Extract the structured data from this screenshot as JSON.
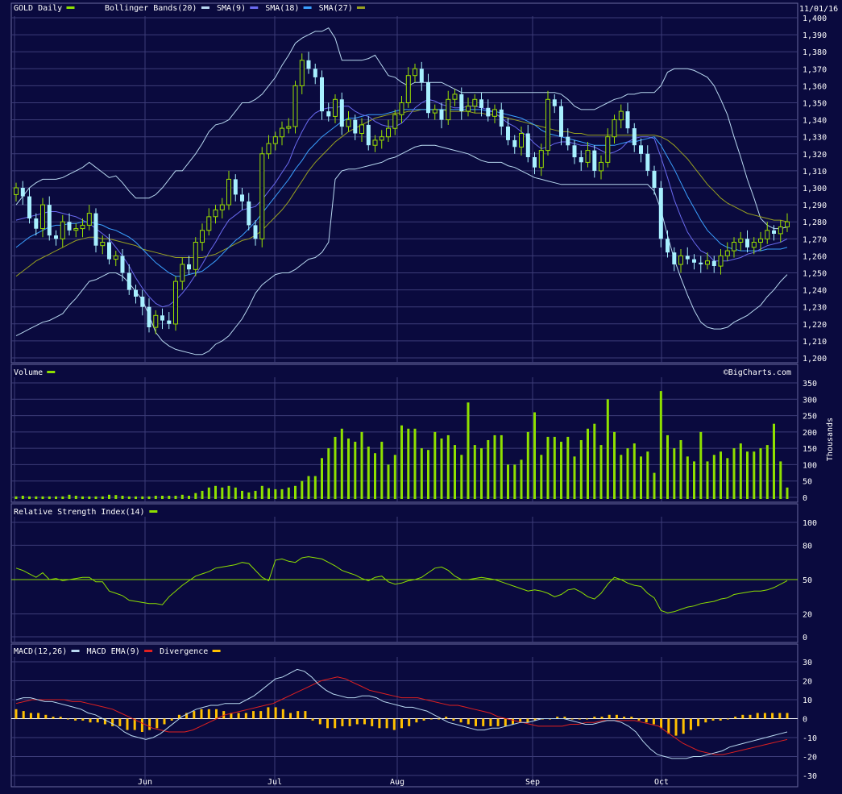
{
  "colors": {
    "background": "#0a0a3e",
    "grid": "#3c3c78",
    "up": "#9be000",
    "down": "#a8f0ff",
    "bollinger": "#b8d8f0",
    "sma9": "#6a6af0",
    "sma18": "#3aa0ff",
    "sma27": "#98a020",
    "volume": "#8ee000",
    "rsi": "#8ee000",
    "macd": "#b8d8f0",
    "macd_ema": "#e02020",
    "divergence": "#ffc000"
  },
  "header": {
    "date": "11/01/16"
  },
  "watermark": "©BigCharts.com",
  "chart_data": [
    {
      "id": "price",
      "type": "candlestick",
      "legend": [
        {
          "label": "GOLD Daily",
          "color": "#8ee000"
        },
        {
          "label": "Bollinger Bands(20)",
          "color": "#b8d8f0"
        },
        {
          "label": "SMA(9)",
          "color": "#6a6af0"
        },
        {
          "label": "SMA(18)",
          "color": "#3aa0ff"
        },
        {
          "label": "SMA(27)",
          "color": "#98a020"
        }
      ],
      "ylim": [
        1200,
        1400
      ],
      "yticks": [
        "1,200",
        "1,210",
        "1,220",
        "1,230",
        "1,240",
        "1,250",
        "1,260",
        "1,270",
        "1,280",
        "1,290",
        "1,300",
        "1,310",
        "1,320",
        "1,330",
        "1,340",
        "1,350",
        "1,360",
        "1,370",
        "1,380",
        "1,390",
        "1,400"
      ],
      "xticks": [
        "Jun",
        "Jul",
        "Aug",
        "Sep",
        "Oct"
      ],
      "close": [
        1300,
        1295,
        1282,
        1276,
        1290,
        1272,
        1270,
        1280,
        1275,
        1276,
        1278,
        1285,
        1266,
        1268,
        1258,
        1260,
        1250,
        1240,
        1236,
        1230,
        1218,
        1225,
        1222,
        1220,
        1245,
        1255,
        1252,
        1268,
        1275,
        1283,
        1287,
        1290,
        1305,
        1296,
        1292,
        1278,
        1270,
        1320,
        1326,
        1330,
        1335,
        1336,
        1360,
        1375,
        1370,
        1365,
        1345,
        1342,
        1352,
        1336,
        1340,
        1332,
        1337,
        1325,
        1328,
        1330,
        1335,
        1343,
        1350,
        1366,
        1370,
        1362,
        1344,
        1346,
        1340,
        1352,
        1355,
        1345,
        1348,
        1352,
        1347,
        1342,
        1346,
        1336,
        1328,
        1324,
        1332,
        1318,
        1312,
        1322,
        1352,
        1348,
        1330,
        1325,
        1318,
        1315,
        1322,
        1310,
        1315,
        1330,
        1340,
        1345,
        1335,
        1325,
        1320,
        1310,
        1300,
        1270,
        1262,
        1255,
        1260,
        1258,
        1256,
        1255,
        1257,
        1254,
        1260,
        1263,
        1268,
        1270,
        1265,
        1268,
        1270,
        1275,
        1273,
        1277,
        1280
      ],
      "bb_upper": [
        1290,
        1295,
        1300,
        1303,
        1305,
        1305,
        1305,
        1306,
        1308,
        1310,
        1312,
        1315,
        1312,
        1309,
        1306,
        1307,
        1303,
        1298,
        1294,
        1294,
        1294,
        1296,
        1300,
        1305,
        1310,
        1310,
        1315,
        1320,
        1326,
        1333,
        1337,
        1338,
        1340,
        1345,
        1350,
        1350,
        1352,
        1355,
        1360,
        1365,
        1372,
        1378,
        1385,
        1388,
        1390,
        1392,
        1392,
        1394,
        1388,
        1375,
        1375,
        1375,
        1375,
        1376,
        1378,
        1372,
        1366,
        1365,
        1362,
        1360,
        1362,
        1362,
        1362,
        1362,
        1362,
        1360,
        1358,
        1356,
        1356,
        1356,
        1356,
        1356,
        1356,
        1356,
        1356,
        1356,
        1356,
        1356,
        1356,
        1356,
        1356,
        1356,
        1355,
        1352,
        1348,
        1346,
        1346,
        1346,
        1348,
        1350,
        1352,
        1353,
        1355,
        1355,
        1356,
        1356,
        1356,
        1360,
        1368,
        1370,
        1370,
        1370,
        1369,
        1367,
        1365,
        1360,
        1352,
        1343,
        1330,
        1318,
        1305,
        1294,
        1282,
        1278,
        1276,
        1276,
        1277
      ],
      "bb_lower": [
        1213,
        1215,
        1217,
        1219,
        1221,
        1222,
        1224,
        1226,
        1231,
        1235,
        1240,
        1245,
        1246,
        1248,
        1250,
        1250,
        1248,
        1244,
        1239,
        1234,
        1225,
        1215,
        1210,
        1207,
        1205,
        1204,
        1203,
        1202,
        1202,
        1204,
        1208,
        1210,
        1213,
        1218,
        1223,
        1230,
        1238,
        1243,
        1246,
        1249,
        1250,
        1250,
        1252,
        1255,
        1258,
        1259,
        1262,
        1268,
        1305,
        1310,
        1311,
        1311,
        1312,
        1313,
        1314,
        1315,
        1317,
        1318,
        1320,
        1322,
        1324,
        1325,
        1325,
        1325,
        1324,
        1323,
        1322,
        1321,
        1320,
        1318,
        1316,
        1315,
        1315,
        1315,
        1313,
        1312,
        1310,
        1308,
        1306,
        1305,
        1304,
        1303,
        1302,
        1302,
        1302,
        1302,
        1302,
        1302,
        1302,
        1302,
        1302,
        1302,
        1302,
        1302,
        1302,
        1302,
        1298,
        1287,
        1272,
        1258,
        1247,
        1237,
        1228,
        1221,
        1218,
        1217,
        1217,
        1218,
        1221,
        1223,
        1225,
        1228,
        1231,
        1236,
        1240,
        1245,
        1249
      ],
      "sma9": [
        1281,
        1282,
        1283,
        1284,
        1285,
        1286,
        1286,
        1285,
        1284,
        1283,
        1281,
        1279,
        1276,
        1273,
        1270,
        1265,
        1260,
        1254,
        1247,
        1241,
        1236,
        1232,
        1230,
        1231,
        1234,
        1238,
        1243,
        1249,
        1255,
        1262,
        1268,
        1275,
        1281,
        1284,
        1287,
        1288,
        1289,
        1293,
        1298,
        1303,
        1309,
        1315,
        1325,
        1333,
        1340,
        1344,
        1346,
        1347,
        1347,
        1348,
        1348,
        1345,
        1343,
        1342,
        1339,
        1337,
        1336,
        1336,
        1338,
        1342,
        1347,
        1350,
        1352,
        1351,
        1349,
        1348,
        1347,
        1347,
        1348,
        1348,
        1347,
        1346,
        1344,
        1341,
        1338,
        1336,
        1333,
        1330,
        1326,
        1323,
        1324,
        1326,
        1327,
        1327,
        1326,
        1325,
        1325,
        1324,
        1322,
        1320,
        1321,
        1323,
        1327,
        1329,
        1330,
        1330,
        1329,
        1318,
        1306,
        1293,
        1283,
        1274,
        1268,
        1263,
        1261,
        1257,
        1257,
        1257,
        1258,
        1259,
        1261,
        1262,
        1264,
        1266,
        1267,
        1268,
        1270
      ],
      "sma18": [
        1265,
        1268,
        1271,
        1273,
        1275,
        1277,
        1278,
        1278,
        1279,
        1279,
        1280,
        1280,
        1279,
        1278,
        1276,
        1275,
        1273,
        1271,
        1268,
        1264,
        1260,
        1256,
        1253,
        1250,
        1248,
        1248,
        1249,
        1250,
        1251,
        1254,
        1257,
        1261,
        1265,
        1269,
        1272,
        1276,
        1280,
        1285,
        1290,
        1295,
        1300,
        1305,
        1311,
        1316,
        1322,
        1326,
        1330,
        1333,
        1336,
        1339,
        1341,
        1341,
        1342,
        1343,
        1343,
        1343,
        1344,
        1345,
        1346,
        1346,
        1346,
        1346,
        1346,
        1346,
        1346,
        1346,
        1346,
        1346,
        1346,
        1346,
        1346,
        1345,
        1345,
        1344,
        1343,
        1342,
        1341,
        1339,
        1337,
        1334,
        1332,
        1331,
        1330,
        1329,
        1328,
        1327,
        1326,
        1325,
        1325,
        1325,
        1325,
        1326,
        1327,
        1327,
        1328,
        1329,
        1330,
        1325,
        1318,
        1311,
        1303,
        1295,
        1288,
        1281,
        1275,
        1271,
        1267,
        1265,
        1264,
        1263,
        1263,
        1263,
        1263,
        1264,
        1264,
        1264,
        1265
      ],
      "sma27": [
        1248,
        1251,
        1254,
        1257,
        1259,
        1261,
        1263,
        1265,
        1267,
        1269,
        1270,
        1271,
        1271,
        1270,
        1270,
        1269,
        1268,
        1267,
        1266,
        1264,
        1263,
        1262,
        1261,
        1260,
        1259,
        1259,
        1259,
        1259,
        1259,
        1260,
        1261,
        1263,
        1265,
        1267,
        1269,
        1270,
        1272,
        1275,
        1279,
        1283,
        1287,
        1292,
        1298,
        1304,
        1310,
        1315,
        1319,
        1323,
        1327,
        1330,
        1333,
        1335,
        1337,
        1339,
        1341,
        1342,
        1343,
        1344,
        1344,
        1345,
        1345,
        1346,
        1346,
        1346,
        1346,
        1345,
        1345,
        1345,
        1345,
        1344,
        1344,
        1343,
        1343,
        1342,
        1341,
        1340,
        1339,
        1338,
        1337,
        1336,
        1335,
        1334,
        1333,
        1333,
        1332,
        1332,
        1331,
        1331,
        1331,
        1331,
        1331,
        1331,
        1331,
        1331,
        1331,
        1331,
        1331,
        1330,
        1328,
        1325,
        1321,
        1317,
        1312,
        1307,
        1302,
        1298,
        1294,
        1291,
        1289,
        1287,
        1285,
        1284,
        1283,
        1282,
        1281,
        1281,
        1280
      ]
    },
    {
      "id": "volume",
      "type": "bar",
      "legend": [
        {
          "label": "Volume",
          "color": "#8ee000"
        }
      ],
      "ylabel": "Thousands",
      "ylim": [
        0,
        350
      ],
      "yticks": [
        "0",
        "50",
        "100",
        "150",
        "200",
        "250",
        "300",
        "350"
      ],
      "values": [
        3,
        3,
        3,
        3,
        3,
        3,
        3,
        3,
        3,
        3,
        8,
        5,
        3,
        3,
        3,
        3,
        3,
        3,
        3,
        3,
        3,
        3,
        3,
        5,
        3,
        3,
        3,
        3,
        3,
        3,
        8,
        5,
        3,
        3,
        3,
        3,
        8,
        7,
        5,
        3,
        3,
        3,
        3,
        5,
        5,
        5,
        5,
        8,
        5,
        13,
        20,
        30,
        35,
        30,
        35,
        30,
        20,
        15,
        20,
        35,
        28,
        25,
        25,
        30,
        35,
        50,
        65,
        65,
        120,
        150,
        185,
        210,
        180,
        170,
        200,
        155,
        135,
        170,
        100,
        130,
        220,
        210,
        210,
        150,
        145,
        200,
        180,
        190,
        160,
        130,
        290,
        160,
        150,
        175,
        190,
        190,
        100,
        100,
        115,
        200,
        260,
        130,
        185,
        185,
        170,
        185,
        125,
        175,
        210,
        225,
        160,
        300,
        200,
        130,
        150,
        165,
        125,
        140,
        75
      ],
      "extra_values": [
        325,
        190,
        150,
        175,
        125,
        110,
        200,
        110,
        130,
        140,
        120,
        150,
        165,
        140,
        140,
        150,
        160,
        225,
        110,
        30
      ]
    },
    {
      "id": "rsi",
      "type": "line",
      "legend": [
        {
          "label": "Relative Strength Index(14)",
          "color": "#8ee000"
        }
      ],
      "ylim": [
        0,
        100
      ],
      "yticks": [
        "0",
        "20",
        "50",
        "80",
        "100"
      ],
      "reference_line": 50,
      "values": [
        60,
        58,
        55,
        52,
        56,
        50,
        51,
        49,
        50,
        51,
        52,
        52,
        48,
        48,
        40,
        38,
        36,
        32,
        31,
        30,
        29,
        29,
        28,
        35,
        40,
        45,
        49,
        53,
        55,
        57,
        60,
        61,
        62,
        63,
        65,
        64,
        58,
        52,
        49,
        67,
        68,
        66,
        65,
        69,
        70,
        69,
        68,
        65,
        62,
        58,
        56,
        54,
        51,
        49,
        52,
        53,
        48,
        46,
        47,
        49,
        50,
        52,
        56,
        60,
        61,
        58,
        53,
        50,
        50,
        51,
        52,
        51,
        50,
        48,
        46,
        44,
        42,
        40,
        41,
        40,
        38,
        35,
        37,
        41,
        42,
        39,
        35,
        33,
        38,
        46,
        52,
        50,
        47,
        45,
        44,
        38,
        34,
        23,
        21,
        22,
        24,
        26,
        27,
        29,
        30,
        31,
        33,
        34,
        37,
        38,
        39,
        40,
        40,
        41,
        43,
        46,
        49
      ]
    },
    {
      "id": "macd",
      "type": "line",
      "legend": [
        {
          "label": "MACD(12,26)",
          "color": "#b8d8f0"
        },
        {
          "label": "MACD EMA(9)",
          "color": "#e02020"
        },
        {
          "label": "Divergence",
          "color": "#ffc000"
        }
      ],
      "ylim": [
        -30,
        30
      ],
      "yticks": [
        "-30",
        "-20",
        "-10",
        "0",
        "10",
        "20",
        "30"
      ],
      "macd": [
        10,
        11,
        11,
        10,
        9,
        9,
        8,
        7,
        6,
        5,
        3,
        2,
        0,
        -2,
        -4,
        -7,
        -9,
        -10,
        -11,
        -10,
        -8,
        -5,
        -2,
        1,
        3,
        5,
        6,
        7,
        7,
        8,
        8,
        8,
        10,
        12,
        15,
        18,
        21,
        22,
        24,
        26,
        25,
        22,
        18,
        15,
        13,
        12,
        11,
        11,
        12,
        12,
        11,
        9,
        8,
        7,
        6,
        6,
        5,
        4,
        2,
        0,
        -2,
        -3,
        -4,
        -5,
        -6,
        -6,
        -5,
        -5,
        -4,
        -3,
        -2,
        -2,
        -1,
        0,
        0,
        0,
        0,
        -1,
        -2,
        -3,
        -3,
        -2,
        -1,
        -1,
        -2,
        -4,
        -7,
        -12,
        -16,
        -19,
        -20,
        -21,
        -21,
        -21,
        -20,
        -20,
        -19,
        -18,
        -17,
        -15,
        -14,
        -13,
        -12,
        -11,
        -10,
        -9,
        -8,
        -7
      ],
      "ema": [
        8,
        9,
        10,
        10,
        10,
        10,
        10,
        9,
        9,
        8,
        7,
        6,
        5,
        3,
        1,
        -1,
        -3,
        -5,
        -6,
        -7,
        -7,
        -7,
        -6,
        -4,
        -2,
        0,
        2,
        3,
        4,
        5,
        6,
        7,
        8,
        10,
        12,
        14,
        16,
        18,
        20,
        21,
        22,
        21,
        19,
        17,
        15,
        14,
        13,
        12,
        11,
        11,
        11,
        10,
        9,
        8,
        7,
        7,
        6,
        5,
        4,
        3,
        1,
        0,
        -1,
        -2,
        -3,
        -4,
        -4,
        -4,
        -4,
        -3,
        -3,
        -2,
        -2,
        -1,
        -1,
        -1,
        -1,
        -1,
        -2,
        -3,
        -4,
        -7,
        -10,
        -13,
        -15,
        -17,
        -18,
        -19,
        -19,
        -18,
        -17,
        -16,
        -15,
        -14,
        -13,
        -12,
        -11
      ],
      "divergence": [
        5,
        4,
        3,
        3,
        2,
        1,
        1,
        0,
        -1,
        -1,
        -2,
        -2,
        -3,
        -4,
        -4,
        -6,
        -6,
        -7,
        -6,
        -5,
        -3,
        -1,
        2,
        3,
        4,
        5,
        5,
        5,
        4,
        3,
        3,
        3,
        4,
        4,
        6,
        6,
        5,
        3,
        4,
        4,
        -1,
        -3,
        -5,
        -5,
        -4,
        -4,
        -3,
        -3,
        -4,
        -5,
        -5,
        -6,
        -5,
        -4,
        -2,
        -1,
        0,
        0,
        1,
        -1,
        -2,
        -3,
        -4,
        -4,
        -4,
        -4,
        -4,
        -3,
        -2,
        -2,
        -1,
        0,
        0,
        1,
        1,
        0,
        0,
        0,
        1,
        1,
        2,
        2,
        1,
        1,
        -1,
        -2,
        -3,
        -5,
        -8,
        -9,
        -8,
        -6,
        -4,
        -2,
        -1,
        -1,
        0,
        1,
        2,
        2,
        3,
        3,
        3,
        3,
        3
      ]
    }
  ]
}
